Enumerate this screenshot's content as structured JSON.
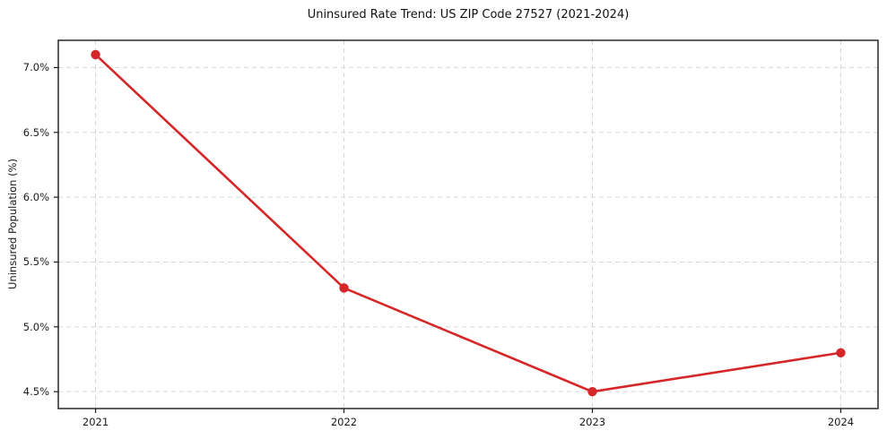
{
  "chart_data": {
    "type": "line",
    "title": "Uninsured Rate Trend: US ZIP Code 27527 (2021-2024)",
    "xlabel": "",
    "ylabel": "Uninsured Population (%)",
    "x": [
      2021,
      2022,
      2023,
      2024
    ],
    "values": [
      7.1,
      5.3,
      4.5,
      4.8
    ],
    "xticks": [
      2021,
      2022,
      2023,
      2024
    ],
    "xtick_labels": [
      "2021",
      "2022",
      "2023",
      "2024"
    ],
    "yticks": [
      4.5,
      5.0,
      5.5,
      6.0,
      6.5,
      7.0
    ],
    "ytick_labels": [
      "4.5%",
      "5.0%",
      "5.5%",
      "6.0%",
      "6.5%",
      "7.0%"
    ],
    "xlim": [
      2020.85,
      2024.15
    ],
    "ylim": [
      4.37,
      7.21
    ],
    "grid": true,
    "grid_style": "dashed",
    "grid_color": "#d5d5d5",
    "line_color": "#d62728",
    "marker": "circle",
    "marker_color": "#d62728",
    "spine_color": "#1a1a1a",
    "legend": null
  }
}
